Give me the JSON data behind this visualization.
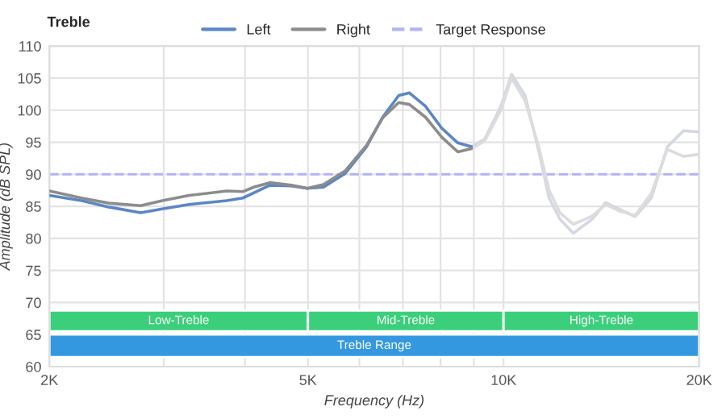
{
  "chart_data": {
    "type": "line",
    "title": "Treble",
    "xlabel": "Frequency (Hz)",
    "ylabel": "Amplitude (dB SPL)",
    "log": "x",
    "xlim": [
      2000,
      20000
    ],
    "ylim": [
      60,
      110
    ],
    "xticks": [
      {
        "value": 2000,
        "label": "2K"
      },
      {
        "value": 3000,
        "label": null
      },
      {
        "value": 4000,
        "label": null
      },
      {
        "value": 5000,
        "label": "5K"
      },
      {
        "value": 6000,
        "label": null
      },
      {
        "value": 7000,
        "label": null
      },
      {
        "value": 8000,
        "label": null
      },
      {
        "value": 9000,
        "label": null
      },
      {
        "value": 10000,
        "label": "10K"
      },
      {
        "value": 20000,
        "label": "20K"
      }
    ],
    "yticks": [
      60,
      65,
      70,
      75,
      80,
      85,
      90,
      95,
      100,
      105,
      110
    ],
    "grid": true,
    "legend": "top",
    "marker": "none",
    "line_style": "solid",
    "series": [
      {
        "name": "Left",
        "color": "#5b86c5",
        "x": [
          2000,
          2242,
          2467,
          2764,
          2985,
          3282,
          3750,
          3970,
          4126,
          4368,
          4712,
          4989,
          5282,
          5700,
          6154,
          6515,
          6898,
          7164,
          7586,
          8032,
          8504,
          8922
        ],
        "values": [
          86.7,
          85.9,
          84.9,
          84.0,
          84.6,
          85.3,
          85.9,
          86.3,
          87.1,
          88.3,
          88.2,
          87.8,
          88.0,
          90.1,
          94.3,
          98.9,
          102.3,
          102.7,
          100.6,
          97.2,
          94.9,
          94.3
        ]
      },
      {
        "name": "Right",
        "color": "#8c8c8c",
        "x": [
          2000,
          2242,
          2467,
          2764,
          2985,
          3282,
          3750,
          3970,
          4126,
          4368,
          4712,
          4989,
          5282,
          5700,
          6154,
          6515,
          6898,
          7164,
          7586,
          8032,
          8504,
          8922
        ],
        "values": [
          87.4,
          86.3,
          85.5,
          85.1,
          85.9,
          86.7,
          87.4,
          87.3,
          88.0,
          88.7,
          88.3,
          87.8,
          88.4,
          90.5,
          94.5,
          98.8,
          101.2,
          100.9,
          98.9,
          95.8,
          93.5,
          94.0
        ]
      },
      {
        "color": "#d3d8e3",
        "x": [
          8922,
          9354,
          9904,
          10290,
          10790,
          11314,
          11754,
          12214,
          12808,
          13692,
          14358,
          15056,
          15942,
          16880,
          17872,
          18922,
          20000
        ],
        "values": [
          94.3,
          95.5,
          100.6,
          105.6,
          102.3,
          93.9,
          86.3,
          83.0,
          80.8,
          83.0,
          85.6,
          84.6,
          83.4,
          86.3,
          94.3,
          96.8,
          96.6
        ]
      },
      {
        "color": "#dcdcdc",
        "x": [
          8922,
          9354,
          9904,
          10290,
          10790,
          11314,
          11754,
          12214,
          12808,
          13692,
          14358,
          15056,
          15942,
          16880,
          17872,
          18922,
          20000
        ],
        "values": [
          94.0,
          95.2,
          100.0,
          105.0,
          101.5,
          94.5,
          87.5,
          84.0,
          82.2,
          83.5,
          85.3,
          84.3,
          83.6,
          87.0,
          93.9,
          92.8,
          93.1
        ]
      }
    ],
    "ref_lines": [
      {
        "axis": "y",
        "value": 90,
        "label": "Target Response",
        "color": "#b3b3f5",
        "line_style": "dashed"
      }
    ],
    "bands": [
      {
        "axis": "x",
        "from": 2000,
        "to": 5000,
        "label": "Low-Treble",
        "color": "#3ccf7b"
      },
      {
        "axis": "x",
        "from": 5000,
        "to": 10000,
        "label": "Mid-Treble",
        "color": "#3ccf7b"
      },
      {
        "axis": "x",
        "from": 10000,
        "to": 20000,
        "label": "High-Treble",
        "color": "#3ccf7b"
      },
      {
        "axis": "x",
        "from": 2000,
        "to": 20000,
        "label": "Treble Range",
        "color": "#3498e0"
      }
    ]
  }
}
